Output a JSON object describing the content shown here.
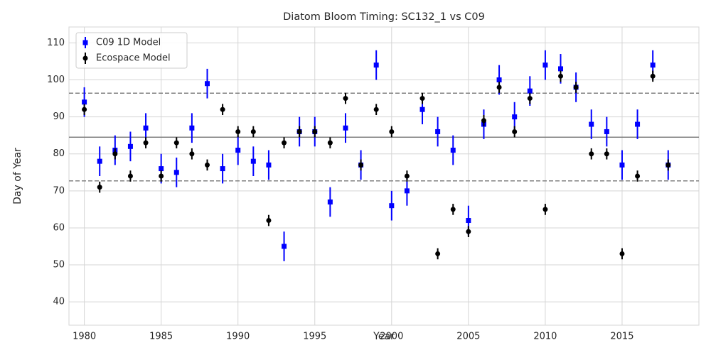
{
  "chart_data": {
    "type": "errorbar",
    "title": "Diatom Bloom Timing: SC132_1 vs C09",
    "x_label": "Year",
    "y_label": "Day of Year",
    "x": [
      1980,
      1981,
      1982,
      1983,
      1984,
      1985,
      1986,
      1987,
      1988,
      1989,
      1990,
      1991,
      1992,
      1993,
      1994,
      1995,
      1996,
      1997,
      1998,
      1999,
      2000,
      2001,
      2002,
      2003,
      2004,
      2005,
      2006,
      2007,
      2008,
      2009,
      2010,
      2011,
      2012,
      2013,
      2014,
      2015,
      2016,
      2017,
      2018
    ],
    "series": [
      {
        "name": "C09 1D Model",
        "color": "#0000ff",
        "marker": "square",
        "error": 4,
        "values": [
          94,
          78,
          81,
          82,
          87,
          76,
          75,
          87,
          99,
          76,
          81,
          78,
          77,
          55,
          86,
          86,
          67,
          87,
          77,
          104,
          66,
          70,
          92,
          86,
          81,
          62,
          88,
          100,
          90,
          97,
          104,
          103,
          98,
          88,
          86,
          77,
          88,
          104,
          77
        ]
      },
      {
        "name": "Ecospace Model",
        "color": "#000000",
        "marker": "circle",
        "error": 1.5,
        "values": [
          92,
          71,
          80,
          74,
          83,
          74,
          83,
          80,
          77,
          92,
          86,
          86,
          62,
          83,
          86,
          86,
          83,
          95,
          77,
          92,
          86,
          74,
          95,
          53,
          65,
          59,
          89,
          98,
          86,
          95,
          65,
          101,
          98,
          80,
          80,
          53,
          74,
          101,
          77
        ]
      }
    ],
    "reference_lines": [
      {
        "value": 84.5,
        "style": "solid",
        "color": "#808080"
      },
      {
        "value": 96.4,
        "style": "dashed",
        "color": "#808080"
      },
      {
        "value": 72.7,
        "style": "dashed",
        "color": "#808080"
      }
    ],
    "xlim": [
      1979,
      2020
    ],
    "ylim": [
      33.7,
      114.3
    ],
    "xticks": [
      1980,
      1985,
      1990,
      1995,
      2000,
      2005,
      2010,
      2015
    ],
    "yticks": [
      40,
      50,
      60,
      70,
      80,
      90,
      100,
      110
    ],
    "grid": true,
    "legend": "upper left"
  }
}
